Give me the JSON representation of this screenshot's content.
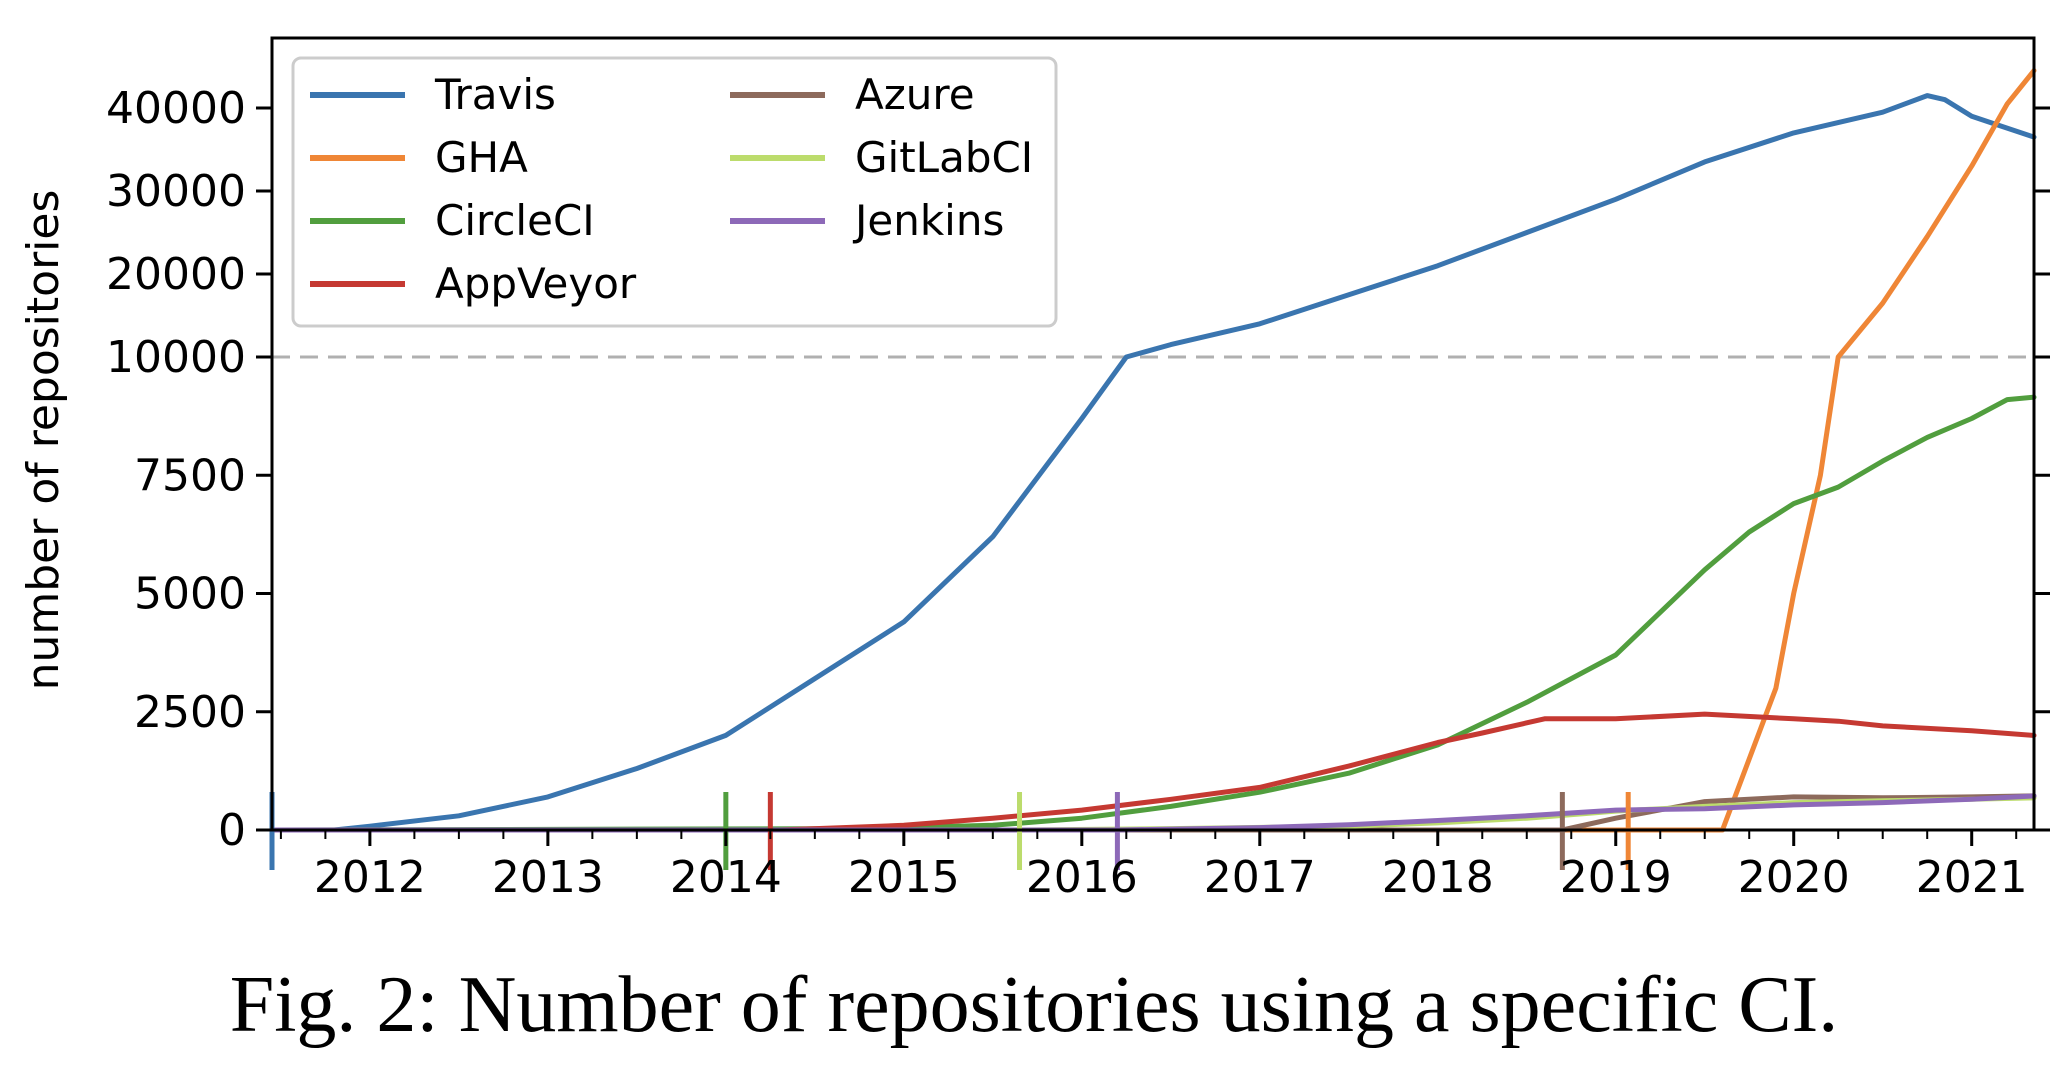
{
  "caption": "Fig. 2: Number of repositories using a specific CI.",
  "chart_data": {
    "type": "line",
    "title": "",
    "xlabel": "",
    "ylabel": "number of repositories",
    "xlim": [
      2011.45,
      2021.35
    ],
    "x_ticks": [
      "2012",
      "2013",
      "2014",
      "2015",
      "2016",
      "2017",
      "2018",
      "2019",
      "2020",
      "2021"
    ],
    "y_scale": "piecewise: linear 0–10000, compressed linear 10000–45000",
    "y_ticks": [
      "0",
      "2500",
      "5000",
      "7500",
      "10000",
      "20000",
      "30000",
      "40000"
    ],
    "reference_line": {
      "y": 10000,
      "style": "dashed gray"
    },
    "legend": {
      "position": "top-left",
      "columns": 2
    },
    "series": [
      {
        "name": "Travis",
        "color": "#3a75af",
        "start": 2011.45,
        "x": [
          2011.45,
          2011.8,
          2012.0,
          2012.5,
          2013.0,
          2013.5,
          2014.0,
          2014.5,
          2015.0,
          2015.5,
          2016.0,
          2016.25,
          2016.5,
          2017.0,
          2017.5,
          2018.0,
          2018.5,
          2019.0,
          2019.5,
          2020.0,
          2020.5,
          2020.75,
          2020.85,
          2021.0,
          2021.35
        ],
        "y": [
          0,
          0,
          80,
          300,
          700,
          1300,
          2000,
          3200,
          4400,
          6200,
          8700,
          10000,
          11500,
          14000,
          17500,
          21000,
          25000,
          29000,
          33500,
          37000,
          39500,
          41500,
          41000,
          39000,
          36500
        ]
      },
      {
        "name": "GHA",
        "color": "#ef8636",
        "start": 2019.07,
        "x": [
          2011.45,
          2019.6,
          2019.75,
          2019.9,
          2020.0,
          2020.15,
          2020.25,
          2020.5,
          2020.75,
          2021.0,
          2021.2,
          2021.35
        ],
        "y": [
          0,
          0,
          1500,
          3000,
          5000,
          7500,
          10000,
          16500,
          24500,
          33000,
          40500,
          44500
        ]
      },
      {
        "name": "CircleCI",
        "color": "#519e3e",
        "start": 2014.0,
        "x": [
          2011.45,
          2014.8,
          2015.5,
          2016.0,
          2016.5,
          2017.0,
          2017.5,
          2018.0,
          2018.5,
          2019.0,
          2019.5,
          2019.75,
          2020.0,
          2020.25,
          2020.5,
          2020.75,
          2021.0,
          2021.2,
          2021.35
        ],
        "y": [
          0,
          30,
          100,
          250,
          500,
          800,
          1200,
          1800,
          2700,
          3700,
          5500,
          6300,
          6900,
          7250,
          7800,
          8300,
          8700,
          9100,
          9150
        ]
      },
      {
        "name": "AppVeyor",
        "color": "#c53932",
        "start": 2014.25,
        "x": [
          2011.45,
          2014.3,
          2015.0,
          2015.5,
          2016.0,
          2016.5,
          2017.0,
          2017.5,
          2018.0,
          2018.25,
          2018.6,
          2019.0,
          2019.5,
          2020.0,
          2020.25,
          2020.5,
          2021.0,
          2021.35
        ],
        "y": [
          0,
          0,
          100,
          250,
          420,
          650,
          900,
          1350,
          1850,
          2050,
          2350,
          2350,
          2450,
          2350,
          2300,
          2200,
          2100,
          2000
        ]
      },
      {
        "name": "Azure",
        "color": "#8d6a5c",
        "start": 2018.7,
        "x": [
          2011.45,
          2018.7,
          2019.0,
          2019.5,
          2020.0,
          2020.5,
          2021.0,
          2021.35
        ],
        "y": [
          0,
          0,
          250,
          600,
          700,
          680,
          700,
          720
        ]
      },
      {
        "name": "GitLabCI",
        "color": "#bcdc6c",
        "start": 2015.65,
        "x": [
          2011.45,
          2015.65,
          2016.5,
          2017.5,
          2018.0,
          2018.5,
          2019.0,
          2019.5,
          2020.0,
          2020.5,
          2021.0,
          2021.35
        ],
        "y": [
          0,
          0,
          30,
          80,
          150,
          250,
          400,
          500,
          580,
          620,
          650,
          680
        ]
      },
      {
        "name": "Jenkins",
        "color": "#8d69b8",
        "start": 2016.2,
        "x": [
          2011.45,
          2016.2,
          2017.0,
          2017.5,
          2018.0,
          2018.5,
          2019.0,
          2019.5,
          2020.0,
          2020.5,
          2021.0,
          2021.35
        ],
        "y": [
          0,
          0,
          50,
          110,
          200,
          300,
          420,
          450,
          530,
          580,
          650,
          720
        ]
      }
    ]
  }
}
